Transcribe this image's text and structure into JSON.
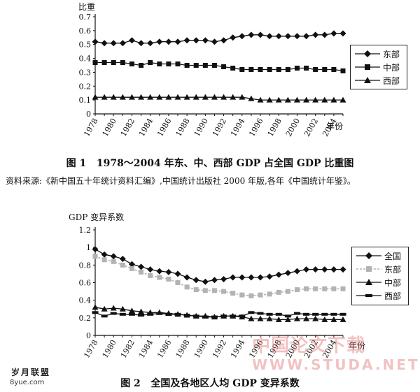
{
  "chart_data": [
    {
      "type": "line",
      "figure_label": "图 1",
      "title": "1978～2004 年东、中、西部 GDP 占全国 GDP 比重图",
      "ylabel": "比重",
      "xlabel": "年份",
      "ylim": [
        0,
        0.7
      ],
      "yticks": [
        0,
        0.1,
        0.2,
        0.3,
        0.4,
        0.5,
        0.6,
        0.7
      ],
      "ytick_labels": [
        "0",
        "0.1",
        "0.2",
        "0.3",
        "0.4",
        "0.5",
        "0.6",
        "0.7"
      ],
      "xtick_labels": [
        "1978",
        "1980",
        "1982",
        "1984",
        "1986",
        "1988",
        "1990",
        "1992",
        "1994",
        "1996",
        "1998",
        "2000",
        "2002",
        "2004"
      ],
      "x": [
        1978,
        1979,
        1980,
        1981,
        1982,
        1983,
        1984,
        1985,
        1986,
        1987,
        1988,
        1989,
        1990,
        1991,
        1992,
        1993,
        1994,
        1995,
        1996,
        1997,
        1998,
        1999,
        2000,
        2001,
        2002,
        2003,
        2004,
        2005
      ],
      "series": [
        {
          "name": "东部",
          "marker": "diamond",
          "color": "#111111",
          "dash": "",
          "values": [
            0.52,
            0.51,
            0.51,
            0.51,
            0.53,
            0.51,
            0.51,
            0.52,
            0.52,
            0.52,
            0.53,
            0.53,
            0.53,
            0.52,
            0.53,
            0.55,
            0.56,
            0.57,
            0.57,
            0.56,
            0.56,
            0.56,
            0.56,
            0.56,
            0.57,
            0.57,
            0.58,
            0.58
          ]
        },
        {
          "name": "中部",
          "marker": "square",
          "color": "#111111",
          "dash": "",
          "values": [
            0.37,
            0.37,
            0.37,
            0.37,
            0.36,
            0.35,
            0.37,
            0.36,
            0.36,
            0.36,
            0.35,
            0.35,
            0.35,
            0.35,
            0.34,
            0.33,
            0.32,
            0.32,
            0.32,
            0.32,
            0.32,
            0.32,
            0.33,
            0.33,
            0.32,
            0.32,
            0.32,
            0.31
          ]
        },
        {
          "name": "西部",
          "marker": "triangle",
          "color": "#111111",
          "dash": "",
          "values": [
            0.12,
            0.12,
            0.12,
            0.12,
            0.12,
            0.12,
            0.12,
            0.12,
            0.12,
            0.12,
            0.12,
            0.12,
            0.12,
            0.12,
            0.12,
            0.12,
            0.12,
            0.11,
            0.1,
            0.1,
            0.1,
            0.1,
            0.1,
            0.1,
            0.1,
            0.1,
            0.1,
            0.1
          ]
        }
      ],
      "legend_position": "right",
      "source_note": "资料来源:《新中国五十年统计资料汇编》,中国统计出版社 2000 年版,各年《中国统计年鉴》。"
    },
    {
      "type": "line",
      "figure_label": "图 2",
      "title": "全国及各地区人均 GDP 变异系数",
      "ylabel": "GDP 变异系数",
      "xlabel": "年份",
      "ylim": [
        0,
        1.2
      ],
      "yticks": [
        0,
        0.2,
        0.4,
        0.6,
        0.8,
        1.0,
        1.2
      ],
      "ytick_labels": [
        "0",
        "0.2",
        "0.4",
        "0.6",
        "0.8",
        "1",
        "1.2"
      ],
      "xtick_labels": [
        "1978",
        "1980",
        "1982",
        "1984",
        "1986",
        "1988",
        "1990",
        "1992",
        "1994",
        "1996",
        "1998",
        "2000",
        "2002",
        "2004"
      ],
      "x": [
        1978,
        1979,
        1980,
        1981,
        1982,
        1983,
        1984,
        1985,
        1986,
        1987,
        1988,
        1989,
        1990,
        1991,
        1992,
        1993,
        1994,
        1995,
        1996,
        1997,
        1998,
        1999,
        2000,
        2001,
        2002,
        2003,
        2004,
        2005
      ],
      "series": [
        {
          "name": "全国",
          "marker": "diamond",
          "color": "#111111",
          "dash": "",
          "values": [
            0.98,
            0.92,
            0.9,
            0.87,
            0.81,
            0.78,
            0.75,
            0.73,
            0.72,
            0.7,
            0.66,
            0.63,
            0.61,
            0.63,
            0.64,
            0.66,
            0.66,
            0.66,
            0.66,
            0.67,
            0.69,
            0.71,
            0.73,
            0.75,
            0.75,
            0.75,
            0.75,
            0.75
          ]
        },
        {
          "name": "东部",
          "marker": "square",
          "color": "#b3b3b3",
          "dash": "3,2",
          "values": [
            0.9,
            0.86,
            0.84,
            0.8,
            0.76,
            0.72,
            0.68,
            0.66,
            0.64,
            0.6,
            0.55,
            0.52,
            0.51,
            0.51,
            0.5,
            0.48,
            0.46,
            0.45,
            0.46,
            0.47,
            0.49,
            0.5,
            0.52,
            0.53,
            0.53,
            0.53,
            0.53,
            0.53
          ]
        },
        {
          "name": "中部",
          "marker": "triangle",
          "color": "#111111",
          "dash": "",
          "values": [
            0.32,
            0.3,
            0.31,
            0.3,
            0.28,
            0.27,
            0.26,
            0.26,
            0.25,
            0.24,
            0.23,
            0.22,
            0.22,
            0.21,
            0.22,
            0.22,
            0.21,
            0.19,
            0.19,
            0.19,
            0.18,
            0.18,
            0.19,
            0.19,
            0.19,
            0.18,
            0.18,
            0.18
          ]
        },
        {
          "name": "西部",
          "marker": "bar",
          "color": "#111111",
          "dash": "",
          "values": [
            0.26,
            0.22,
            0.25,
            0.24,
            0.24,
            0.23,
            0.24,
            0.25,
            0.24,
            0.24,
            0.23,
            0.22,
            0.21,
            0.21,
            0.22,
            0.22,
            0.22,
            0.26,
            0.25,
            0.24,
            0.24,
            0.22,
            0.25,
            0.24,
            0.24,
            0.24,
            0.24,
            0.24
          ]
        }
      ],
      "legend_position": "right"
    }
  ],
  "watermarks": {
    "bottom_left_logo": "岁月联盟",
    "bottom_left_url": "8yue.com",
    "bottom_right_logo": "中国论文下载",
    "bottom_right_url": "WWW.STUDA.NET"
  }
}
